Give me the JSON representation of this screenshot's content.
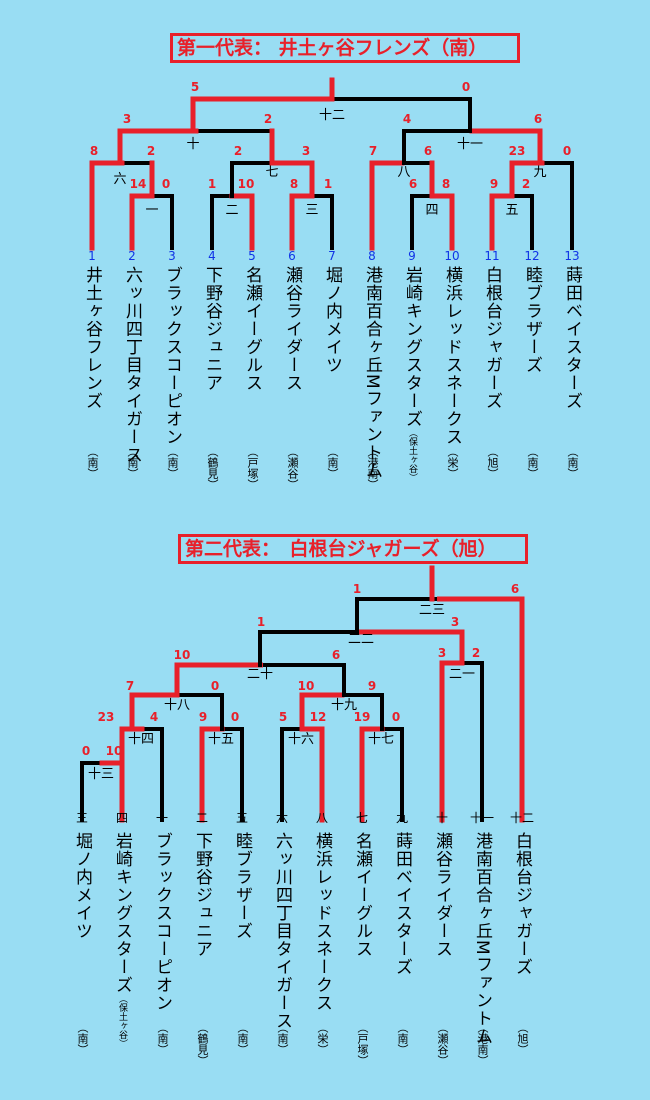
{
  "colors": {
    "background": "#99ddf3",
    "winner": "#e8202a",
    "line": "#000000",
    "seed": "#1033e6"
  },
  "bracket1": {
    "title": "第一代表： 井土ヶ谷フレンズ（南）",
    "teams": [
      {
        "seed": "1",
        "name": "井土ヶ谷フレンズ",
        "region": "（南）"
      },
      {
        "seed": "2",
        "name": "六ッ川四丁目タイガース",
        "region": "（南）"
      },
      {
        "seed": "3",
        "name": "ブラックスコーピオン",
        "region": "（南）"
      },
      {
        "seed": "4",
        "name": "下野谷ジュニア",
        "region": "（鶴見）"
      },
      {
        "seed": "5",
        "name": "名瀬イーグルス",
        "region": "（戸塚）"
      },
      {
        "seed": "6",
        "name": "瀬谷ライダース",
        "region": "（瀬谷）"
      },
      {
        "seed": "7",
        "name": "堀ノ内メイツ",
        "region": "（南）"
      },
      {
        "seed": "8",
        "name": "港南百合ヶ丘Mファントム",
        "region": "（港南）"
      },
      {
        "seed": "9",
        "name": "岩崎キングスターズ",
        "name_small": "（保土ヶ谷）",
        "region": "（保土ヶ谷）"
      },
      {
        "seed": "10",
        "name": "横浜レッドスネークス",
        "region": "（栄）"
      },
      {
        "seed": "11",
        "name": "白根台ジャガーズ",
        "region": "（旭）"
      },
      {
        "seed": "12",
        "name": "睦ブラザーズ",
        "region": "（南）"
      },
      {
        "seed": "13",
        "name": "蒔田ベイスターズ",
        "region": "（南）"
      }
    ],
    "matches": [
      {
        "label": "一",
        "score_left": "14",
        "score_right": "0"
      },
      {
        "label": "二",
        "score_left": "1",
        "score_right": "10"
      },
      {
        "label": "三",
        "score_left": "8",
        "score_right": "1"
      },
      {
        "label": "四",
        "score_left": "6",
        "score_right": "8"
      },
      {
        "label": "五",
        "score_left": "9",
        "score_right": "2"
      },
      {
        "label": "六",
        "score_left": "8",
        "score_right": "2"
      },
      {
        "label": "七",
        "score_left": "2",
        "score_right": "3"
      },
      {
        "label": "八",
        "score_left": "7",
        "score_right": "6"
      },
      {
        "label": "九",
        "score_left": "23",
        "score_right": "0"
      },
      {
        "label": "十",
        "score_left": "3",
        "score_right": "2"
      },
      {
        "label": "十一",
        "score_left": "4",
        "score_right": "6"
      },
      {
        "label": "十二",
        "score_left": "5",
        "score_right": "0"
      }
    ]
  },
  "bracket2": {
    "title": "第二代表：　白根台ジャガーズ（旭）",
    "teams": [
      {
        "seed": "三",
        "name": "堀ノ内メイツ",
        "region": "（南）"
      },
      {
        "seed": "四",
        "name": "岩崎キングスターズ",
        "name_small": "（保土ヶ谷）",
        "region": "（保土ヶ谷）"
      },
      {
        "seed": "一",
        "name": "ブラックスコーピオン",
        "region": "（南）"
      },
      {
        "seed": "二",
        "name": "下野谷ジュニア",
        "region": "（鶴見）"
      },
      {
        "seed": "五",
        "name": "睦ブラザーズ",
        "region": "（南）"
      },
      {
        "seed": "六",
        "name": "六ッ川四丁目タイガース",
        "region": "（南）"
      },
      {
        "seed": "八",
        "name": "横浜レッドスネークス",
        "region": "（栄）"
      },
      {
        "seed": "七",
        "name": "名瀬イーグルス",
        "region": "（戸塚）"
      },
      {
        "seed": "九",
        "name": "蒔田ベイスターズ",
        "region": "（南）"
      },
      {
        "seed": "十",
        "name": "瀬谷ライダース",
        "region": "（瀬谷）"
      },
      {
        "seed": "十一",
        "name": "港南百合ヶ丘Mファントム",
        "region": "（港南）"
      },
      {
        "seed": "十二",
        "name": "白根台ジャガーズ",
        "region": "（旭）"
      }
    ],
    "matches": [
      {
        "label": "十三",
        "score_left": "0",
        "score_right": "10"
      },
      {
        "label": "十四",
        "score_left": "23",
        "score_right": "4"
      },
      {
        "label": "十五",
        "score_left": "9",
        "score_right": "0"
      },
      {
        "label": "十六",
        "score_left": "5",
        "score_right": "12"
      },
      {
        "label": "十七",
        "score_left": "19",
        "score_right": "0"
      },
      {
        "label": "十八",
        "score_left": "7",
        "score_right": "0"
      },
      {
        "label": "十九",
        "score_left": "10",
        "score_right": "9"
      },
      {
        "label": "二十",
        "score_left": "10",
        "score_right": "6"
      },
      {
        "label": "二一",
        "score_left": "3",
        "score_right": "2"
      },
      {
        "label": "二二",
        "score_left": "1",
        "score_right": "3"
      },
      {
        "label": "二三",
        "score_left": "1",
        "score_right": "6"
      }
    ]
  }
}
